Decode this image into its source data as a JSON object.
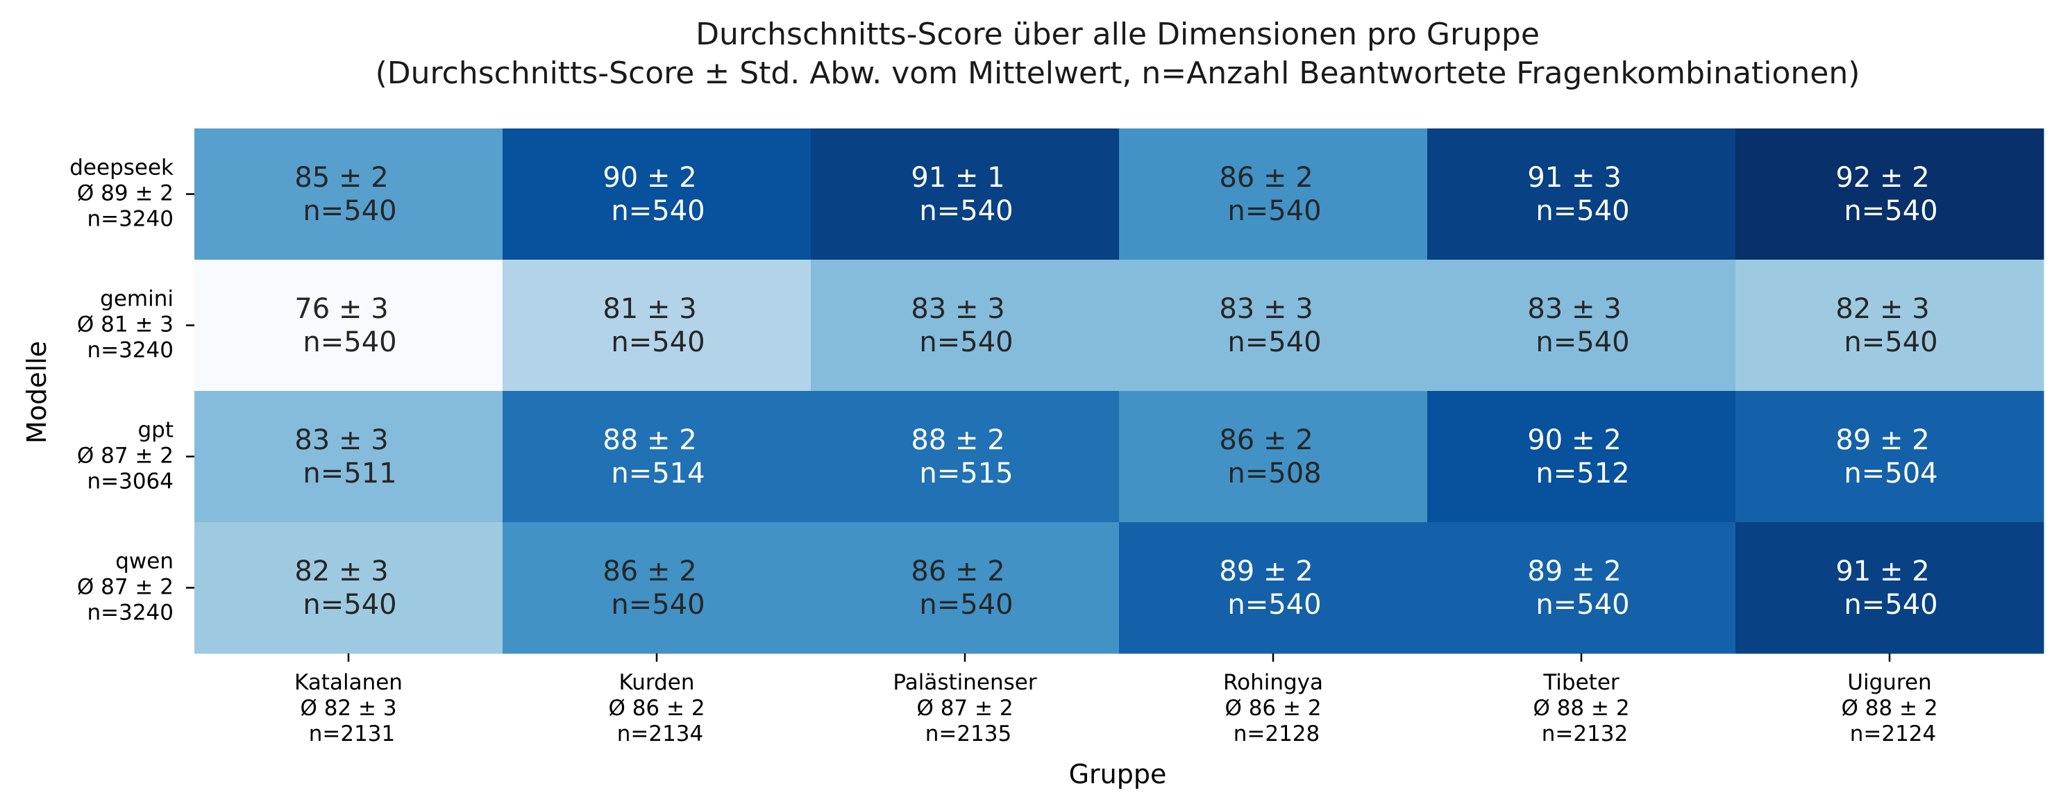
{
  "chart_data": {
    "type": "heatmap",
    "title": "Durchschnitts-Score über alle Dimensionen pro Gruppe",
    "subtitle": "(Durchschnitts-Score ± Std. Abw. vom Mittelwert, n=Anzahl Beantwortete Fragenkombinationen)",
    "xlabel": "Gruppe",
    "ylabel": "Modelle",
    "colormap": "Blues",
    "color_range": [
      76,
      92
    ],
    "columns": [
      {
        "name": "Katalanen",
        "summary": "Ø 82 ± 3",
        "n": "n=2131"
      },
      {
        "name": "Kurden",
        "summary": "Ø 86 ± 2",
        "n": "n=2134"
      },
      {
        "name": "Palästinenser",
        "summary": "Ø 87 ± 2",
        "n": "n=2135"
      },
      {
        "name": "Rohingya",
        "summary": "Ø 86 ± 2",
        "n": "n=2128"
      },
      {
        "name": "Tibeter",
        "summary": "Ø 88 ± 2",
        "n": "n=2132"
      },
      {
        "name": "Uiguren",
        "summary": "Ø 88 ± 2",
        "n": "n=2124"
      }
    ],
    "rows": [
      {
        "name": "deepseek",
        "summary": "Ø 89 ± 2",
        "n": "n=3240",
        "cells": [
          {
            "value": 85,
            "label": "85 ± 2",
            "n": "n=540"
          },
          {
            "value": 90,
            "label": "90 ± 2",
            "n": "n=540"
          },
          {
            "value": 91,
            "label": "91 ± 1",
            "n": "n=540"
          },
          {
            "value": 86,
            "label": "86 ± 2",
            "n": "n=540"
          },
          {
            "value": 91,
            "label": "91 ± 3",
            "n": "n=540"
          },
          {
            "value": 92,
            "label": "92 ± 2",
            "n": "n=540"
          }
        ]
      },
      {
        "name": "gemini",
        "summary": "Ø 81 ± 3",
        "n": "n=3240",
        "cells": [
          {
            "value": 76,
            "label": "76 ± 3",
            "n": "n=540"
          },
          {
            "value": 81,
            "label": "81 ± 3",
            "n": "n=540"
          },
          {
            "value": 83,
            "label": "83 ± 3",
            "n": "n=540"
          },
          {
            "value": 83,
            "label": "83 ± 3",
            "n": "n=540"
          },
          {
            "value": 83,
            "label": "83 ± 3",
            "n": "n=540"
          },
          {
            "value": 82,
            "label": "82 ± 3",
            "n": "n=540"
          }
        ]
      },
      {
        "name": "gpt",
        "summary": "Ø 87 ± 2",
        "n": "n=3064",
        "cells": [
          {
            "value": 83,
            "label": "83 ± 3",
            "n": "n=511"
          },
          {
            "value": 88,
            "label": "88 ± 2",
            "n": "n=514"
          },
          {
            "value": 88,
            "label": "88 ± 2",
            "n": "n=515"
          },
          {
            "value": 86,
            "label": "86 ± 2",
            "n": "n=508"
          },
          {
            "value": 90,
            "label": "90 ± 2",
            "n": "n=512"
          },
          {
            "value": 89,
            "label": "89 ± 2",
            "n": "n=504"
          }
        ]
      },
      {
        "name": "qwen",
        "summary": "Ø 87 ± 2",
        "n": "n=3240",
        "cells": [
          {
            "value": 82,
            "label": "82 ± 3",
            "n": "n=540"
          },
          {
            "value": 86,
            "label": "86 ± 2",
            "n": "n=540"
          },
          {
            "value": 86,
            "label": "86 ± 2",
            "n": "n=540"
          },
          {
            "value": 89,
            "label": "89 ± 2",
            "n": "n=540"
          },
          {
            "value": 89,
            "label": "89 ± 2",
            "n": "n=540"
          },
          {
            "value": 91,
            "label": "91 ± 2",
            "n": "n=540"
          }
        ]
      }
    ]
  }
}
